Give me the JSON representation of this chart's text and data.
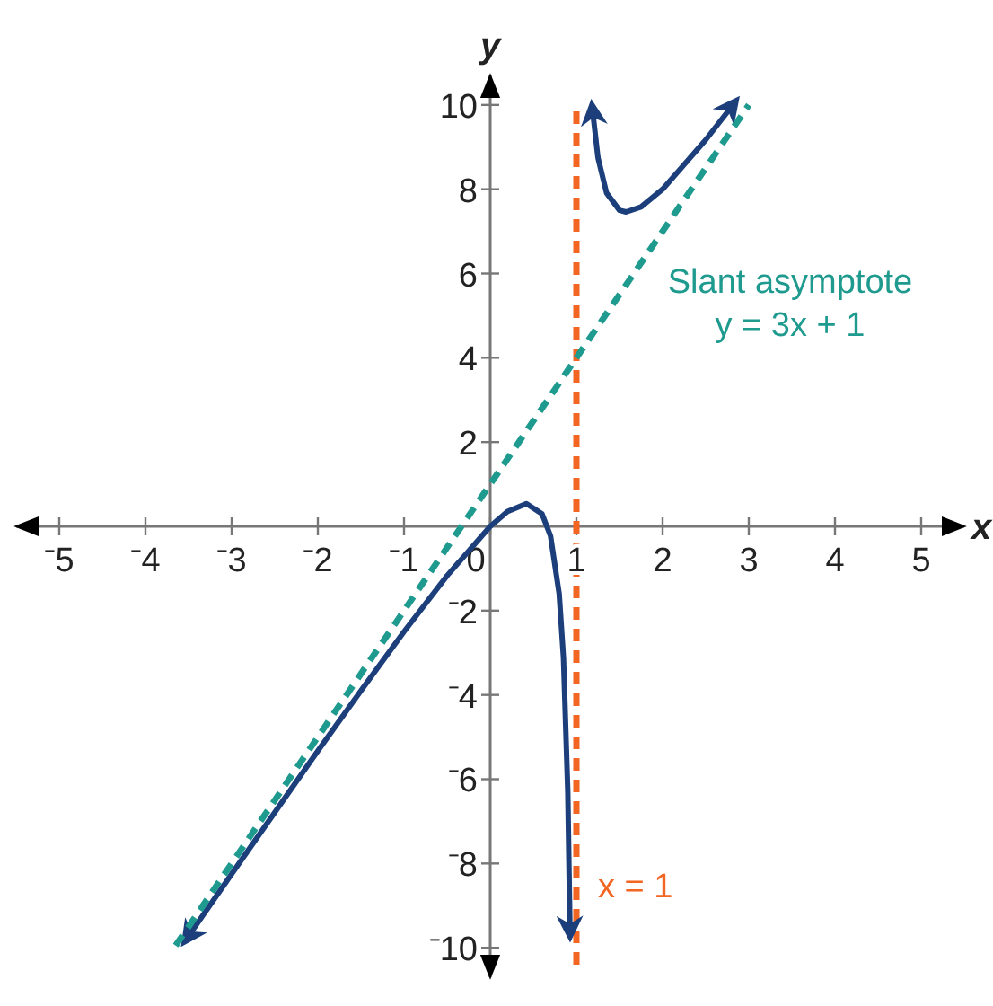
{
  "chart_data": {
    "type": "line",
    "xlabel": "x",
    "ylabel": "y",
    "xlim": [
      -5.5,
      5.5
    ],
    "ylim": [
      -10.7,
      10.7
    ],
    "xticks": [
      {
        "value": -5,
        "label": "⁻5"
      },
      {
        "value": -4,
        "label": "⁻4"
      },
      {
        "value": -3,
        "label": "⁻3"
      },
      {
        "value": -2,
        "label": "⁻2"
      },
      {
        "value": -1,
        "label": "⁻1"
      },
      0,
      1,
      2,
      3,
      4,
      5
    ],
    "yticks": [
      {
        "value": -10,
        "label": "⁻10"
      },
      {
        "value": -8,
        "label": "⁻8"
      },
      {
        "value": -6,
        "label": "⁻6"
      },
      {
        "value": -4,
        "label": "⁻4"
      },
      {
        "value": -2,
        "label": "⁻2"
      },
      2,
      4,
      6,
      8,
      10
    ],
    "grid": false,
    "marker": "none",
    "series": [
      {
        "color": "#1c3f7c",
        "line_style": "solid",
        "x": [
          -3.5,
          -3,
          -2.5,
          -2,
          -1.5,
          -1,
          -0.5,
          0,
          0.2,
          0.42,
          0.6,
          0.7,
          0.8,
          0.85,
          0.9,
          0.925
        ],
        "values": [
          -9.72,
          -8.25,
          -6.79,
          -5.33,
          -3.9,
          -2.5,
          -1.17,
          0,
          0.35,
          0.54,
          0.3,
          -0.23,
          -1.6,
          -3.12,
          -6.3,
          -9.56
        ]
      },
      {
        "color": "#1c3f7c",
        "line_style": "solid",
        "x": [
          1.19,
          1.25,
          1.35,
          1.5,
          1.577,
          1.75,
          2,
          2.5,
          2.8
        ],
        "values": [
          9.83,
          8.75,
          7.91,
          7.5,
          7.46,
          7.58,
          8,
          9.17,
          9.96
        ]
      },
      {
        "color": "#1f9a8f",
        "line_style": "dashed",
        "x": [
          -3.65,
          3
        ],
        "values": [
          -9.95,
          10
        ]
      }
    ],
    "ref_lines": [
      {
        "axis": "x",
        "value": 1,
        "label": "x = 1",
        "color": "#f26522",
        "line_style": "dashed"
      }
    ],
    "annotations": [
      "Slant asymptote\ny = 3x + 1"
    ]
  }
}
